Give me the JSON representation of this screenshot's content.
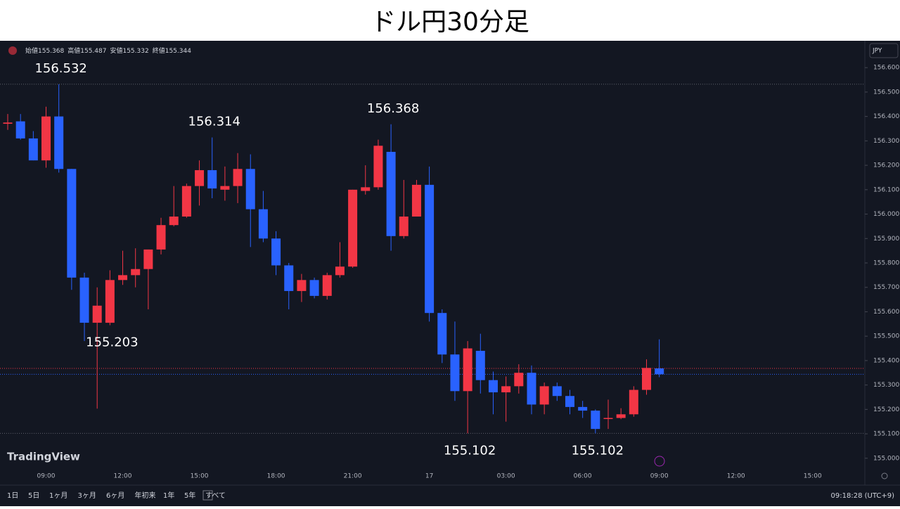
{
  "chart_data": {
    "type": "candlestick",
    "title": "ドル円30分足",
    "open": [
      156.37,
      156.38,
      156.31,
      156.22,
      156.4,
      156.185,
      155.74,
      155.555,
      155.555,
      155.73,
      155.75,
      155.775,
      155.855,
      155.955,
      155.99,
      156.115,
      156.18,
      156.1,
      156.115,
      156.185,
      156.02,
      155.9,
      155.79,
      155.685,
      155.73,
      155.665,
      155.75,
      155.785,
      156.095,
      156.11,
      156.255,
      155.91,
      155.99,
      156.12,
      155.595,
      155.425,
      155.275,
      155.44,
      155.32,
      155.27,
      155.295,
      155.35,
      155.22,
      155.295,
      155.255,
      155.21,
      155.195,
      155.165,
      155.165,
      155.18,
      155.28,
      155.368
    ],
    "high": [
      156.41,
      156.41,
      156.34,
      156.44,
      156.532,
      156.185,
      155.76,
      155.7,
      155.77,
      155.85,
      155.86,
      155.855,
      155.985,
      156.115,
      156.125,
      156.22,
      156.314,
      156.195,
      156.25,
      156.245,
      156.095,
      155.93,
      155.8,
      155.755,
      155.74,
      155.76,
      155.885,
      156.1,
      156.2,
      156.305,
      156.368,
      156.14,
      156.14,
      156.195,
      155.61,
      155.56,
      155.48,
      155.51,
      155.355,
      155.335,
      155.385,
      155.38,
      155.31,
      155.31,
      155.28,
      155.235,
      155.2,
      155.24,
      155.205,
      155.295,
      155.405,
      155.487
    ],
    "low": [
      156.345,
      156.305,
      156.22,
      156.19,
      156.17,
      155.69,
      155.48,
      155.203,
      155.545,
      155.71,
      155.7,
      155.61,
      155.835,
      155.95,
      155.985,
      156.035,
      156.065,
      156.055,
      156.045,
      155.865,
      155.885,
      155.75,
      155.61,
      155.64,
      155.655,
      155.65,
      155.74,
      155.78,
      156.08,
      156.1,
      155.85,
      155.9,
      155.99,
      155.56,
      155.39,
      155.235,
      155.102,
      155.265,
      155.18,
      155.15,
      155.265,
      155.18,
      155.18,
      155.235,
      155.18,
      155.165,
      155.102,
      155.12,
      155.16,
      155.17,
      155.26,
      155.332
    ],
    "close": [
      156.375,
      156.31,
      156.22,
      156.4,
      156.185,
      155.74,
      155.555,
      155.625,
      155.73,
      155.75,
      155.775,
      155.855,
      155.955,
      155.99,
      156.115,
      156.18,
      156.105,
      156.115,
      156.185,
      156.02,
      155.9,
      155.79,
      155.685,
      155.73,
      155.665,
      155.75,
      155.785,
      156.1,
      156.11,
      156.28,
      155.91,
      155.99,
      156.12,
      155.595,
      155.425,
      155.275,
      155.45,
      155.32,
      155.27,
      155.295,
      155.35,
      155.22,
      155.295,
      155.255,
      155.21,
      155.195,
      155.12,
      155.165,
      155.18,
      155.28,
      155.37,
      155.344
    ],
    "up_color": "#f23645",
    "down_color": "#2962ff",
    "ylim": [
      154.89,
      156.71
    ],
    "yticks": [
      {
        "value": 155.0,
        "label": "155.000"
      },
      {
        "value": 155.1,
        "label": "155.100"
      },
      {
        "value": 155.2,
        "label": "155.200"
      },
      {
        "value": 155.3,
        "label": "155.300"
      },
      {
        "value": 155.4,
        "label": "155.400"
      },
      {
        "value": 155.5,
        "label": "155.500"
      },
      {
        "value": 155.6,
        "label": "155.600"
      },
      {
        "value": 155.7,
        "label": "155.700"
      },
      {
        "value": 155.8,
        "label": "155.800"
      },
      {
        "value": 155.9,
        "label": "155.900"
      },
      {
        "value": 156.0,
        "label": "156.000"
      },
      {
        "value": 156.1,
        "label": "156.100"
      },
      {
        "value": 156.2,
        "label": "156.200"
      },
      {
        "value": 156.3,
        "label": "156.300"
      },
      {
        "value": 156.4,
        "label": "156.400"
      },
      {
        "value": 156.5,
        "label": "156.500"
      },
      {
        "value": 156.6,
        "label": "156.600"
      }
    ],
    "xtick_labels": [
      "09:00",
      "12:00",
      "15:00",
      "18:00",
      "21:00",
      "17",
      "03:00",
      "06:00",
      "09:00",
      "12:00",
      "15:00"
    ],
    "legend_labels": [
      "始値",
      "高値",
      "安値",
      "終値"
    ],
    "annotations": [
      "156.532",
      "156.314",
      "155.203",
      "156.368",
      "155.102",
      "155.102"
    ]
  },
  "ui": {
    "currency": "JPY",
    "logo": "TradingView",
    "toolbar": [
      "1日",
      "5日",
      "1ヶ月",
      "3ヶ月",
      "6ヶ月",
      "年初来",
      "1年",
      "5年",
      "すべて"
    ],
    "clock": "09:18:28 (UTC+9)"
  }
}
